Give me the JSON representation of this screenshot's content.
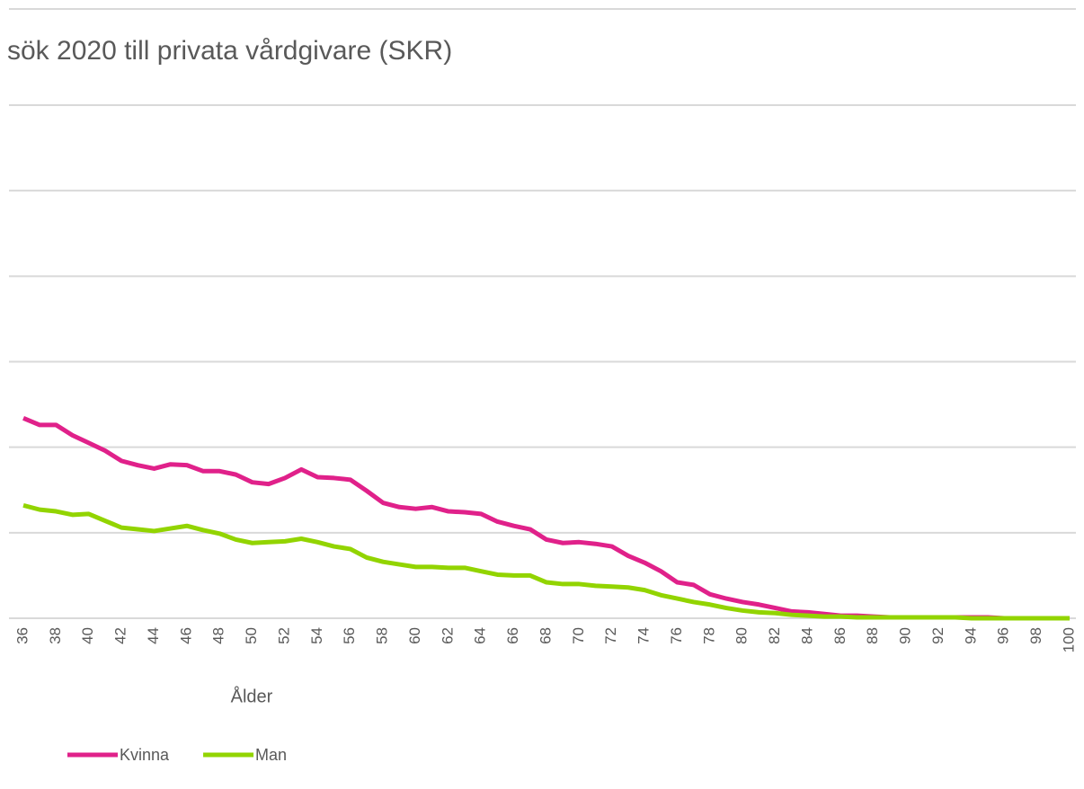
{
  "chart_data": {
    "type": "line",
    "title": "sök 2020 till privata vårdgivare (SKR)",
    "x_label": "Ålder",
    "categories": [
      "36",
      null,
      "38",
      null,
      "40",
      null,
      "42",
      null,
      "44",
      null,
      "46",
      null,
      "48",
      null,
      "50",
      null,
      "52",
      null,
      "54",
      null,
      "56",
      null,
      "58",
      null,
      "60",
      null,
      "62",
      null,
      "64",
      null,
      "66",
      null,
      "68",
      null,
      "70",
      null,
      "72",
      null,
      "74",
      null,
      "76",
      null,
      "78",
      null,
      "80",
      null,
      "82",
      null,
      "84",
      null,
      "86",
      null,
      "88",
      null,
      "90",
      null,
      "92",
      null,
      "94",
      null,
      "96",
      null,
      "98",
      null,
      "100"
    ],
    "series": [
      {
        "name": "Kvinna",
        "color": "#e0218a",
        "values": [
          2.34,
          2.26,
          2.26,
          2.14,
          2.05,
          1.96,
          1.84,
          1.79,
          1.75,
          1.8,
          1.79,
          1.72,
          1.72,
          1.68,
          1.59,
          1.57,
          1.64,
          1.74,
          1.65,
          1.64,
          1.62,
          1.49,
          1.35,
          1.3,
          1.28,
          1.3,
          1.25,
          1.24,
          1.22,
          1.13,
          1.08,
          1.04,
          0.92,
          0.88,
          0.89,
          0.87,
          0.84,
          0.73,
          0.65,
          0.55,
          0.42,
          0.39,
          0.28,
          0.23,
          0.19,
          0.16,
          0.12,
          0.08,
          0.07,
          0.05,
          0.03,
          0.03,
          0.02,
          0.01,
          0.01,
          0.01,
          0.01,
          0.01,
          0.01,
          0.01,
          0,
          0,
          0,
          0,
          0
        ]
      },
      {
        "name": "Man",
        "color": "#92d400",
        "values": [
          1.32,
          1.27,
          1.25,
          1.21,
          1.22,
          1.14,
          1.06,
          1.04,
          1.02,
          1.05,
          1.08,
          1.03,
          0.99,
          0.92,
          0.88,
          0.89,
          0.9,
          0.93,
          0.89,
          0.84,
          0.81,
          0.71,
          0.66,
          0.63,
          0.6,
          0.6,
          0.59,
          0.59,
          0.55,
          0.51,
          0.5,
          0.5,
          0.42,
          0.4,
          0.4,
          0.38,
          0.37,
          0.36,
          0.33,
          0.27,
          0.23,
          0.19,
          0.16,
          0.12,
          0.09,
          0.07,
          0.06,
          0.04,
          0.03,
          0.02,
          0.02,
          0.01,
          0.01,
          0.01,
          0.01,
          0.01,
          0.01,
          0.01,
          0,
          0,
          0,
          0,
          0,
          0,
          0
        ]
      }
    ],
    "ylim": [
      0,
      6
    ],
    "yticks": [
      0,
      1,
      2,
      3,
      4,
      5,
      6
    ],
    "grid": true,
    "legend": "bottom-left"
  }
}
